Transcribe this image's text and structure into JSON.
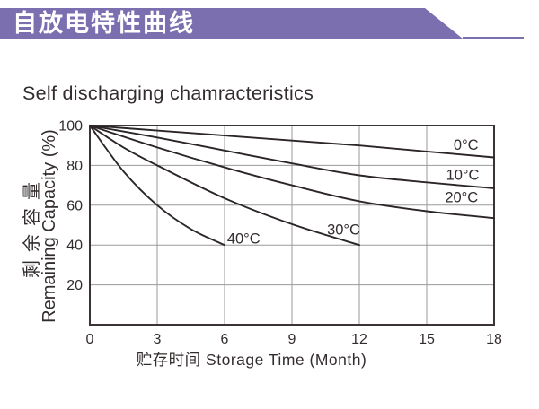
{
  "banner": {
    "title": "自放电特性曲线",
    "bg_color": "#7b6fb0"
  },
  "subtitle": {
    "text": "Self discharging chamracteristics"
  },
  "chart_data": {
    "type": "line",
    "title": "Self discharging chamracteristics",
    "xlabel": "贮存时间 Storage Time (Month)",
    "ylabel_zh": "剩余容量",
    "ylabel_en": "Remaining Capacity (%)",
    "xlim": [
      0,
      18
    ],
    "ylim": [
      0,
      100
    ],
    "x_ticks": [
      0,
      3,
      6,
      9,
      12,
      15,
      18
    ],
    "y_ticks": [
      20,
      40,
      60,
      80,
      100
    ],
    "grid": true,
    "legend_position": "inline-labels",
    "series": [
      {
        "name": "0C",
        "label": {
          "text": "0°C",
          "x": 16.75,
          "y": 90.3
        },
        "points": [
          [
            0,
            100
          ],
          [
            3,
            97.5
          ],
          [
            6,
            95
          ],
          [
            9,
            92.5
          ],
          [
            12,
            90
          ],
          [
            15,
            87
          ],
          [
            18,
            84
          ]
        ]
      },
      {
        "name": "10C",
        "label": {
          "text": "10°C",
          "x": 16.6,
          "y": 75.2
        },
        "points": [
          [
            0,
            100
          ],
          [
            3,
            94
          ],
          [
            6,
            87.5
          ],
          [
            9,
            81
          ],
          [
            12,
            75
          ],
          [
            15,
            71.5
          ],
          [
            18,
            68.5
          ]
        ]
      },
      {
        "name": "20C",
        "label": {
          "text": "20°C",
          "x": 16.55,
          "y": 64
        },
        "points": [
          [
            0,
            100
          ],
          [
            3,
            89
          ],
          [
            6,
            79
          ],
          [
            9,
            70
          ],
          [
            12,
            62
          ],
          [
            15,
            57
          ],
          [
            18,
            53.5
          ]
        ]
      },
      {
        "name": "30C",
        "label": {
          "text": "30°C",
          "x": 11.3,
          "y": 47.8
        },
        "points": [
          [
            0,
            100
          ],
          [
            1.5,
            89
          ],
          [
            3,
            80
          ],
          [
            6,
            63.5
          ],
          [
            9,
            50.5
          ],
          [
            12,
            40
          ]
        ]
      },
      {
        "name": "40C",
        "label": {
          "text": "40°C",
          "x": 6.85,
          "y": 43.3
        },
        "points": [
          [
            0,
            100
          ],
          [
            1.5,
            77
          ],
          [
            3,
            60
          ],
          [
            4.5,
            48
          ],
          [
            6,
            40
          ]
        ]
      }
    ],
    "colors": {
      "curve": "#2b2526",
      "grid": "#9a9a9a",
      "border": "#3a3435",
      "text": "#332c2d",
      "banner": "#7b6fb0"
    }
  }
}
